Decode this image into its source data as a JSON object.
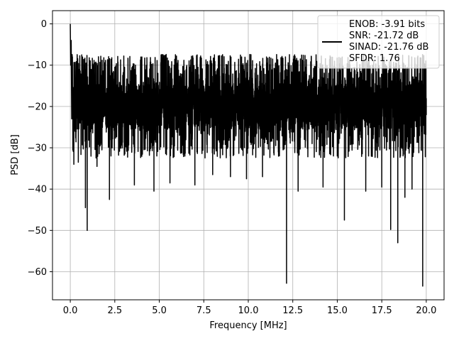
{
  "chart_data": {
    "type": "line",
    "title": "",
    "xlabel": "Frequency [MHz]",
    "ylabel": "PSD [dB]",
    "xlim": [
      -1.0,
      21.0
    ],
    "ylim": [
      -66.8,
      3.2
    ],
    "x_ticks": [
      0.0,
      2.5,
      5.0,
      7.5,
      10.0,
      12.5,
      15.0,
      17.5,
      20.0
    ],
    "x_tick_labels": [
      "0.0",
      "2.5",
      "5.0",
      "7.5",
      "10.0",
      "12.5",
      "15.0",
      "17.5",
      "20.0"
    ],
    "y_ticks": [
      0,
      -10,
      -20,
      -30,
      -40,
      -50,
      -60
    ],
    "y_tick_labels": [
      "0",
      "−10",
      "−20",
      "−30",
      "−40",
      "−50",
      "−60"
    ],
    "grid": true,
    "legend_position": "top-right",
    "legend_lines": [
      "ENOB: -3.91 bits",
      "SNR: -21.72 dB",
      "SINAD: -21.76 dB",
      "SFDR: 1.76"
    ],
    "series": [
      {
        "color": "#000000",
        "description_points": [
          [
            0.0,
            0.0
          ],
          [
            0.02,
            -10.0
          ],
          [
            0.05,
            -4.0
          ],
          [
            0.08,
            -23.0
          ],
          [
            0.12,
            -8.0
          ],
          [
            0.2,
            -34.0
          ],
          [
            0.45,
            -33.5
          ],
          [
            0.6,
            -21.0
          ],
          [
            0.85,
            -44.5
          ],
          [
            0.95,
            -50.0
          ],
          [
            1.5,
            -34.5
          ],
          [
            2.2,
            -42.5
          ],
          [
            3.6,
            -39.0
          ],
          [
            4.7,
            -40.5
          ],
          [
            5.6,
            -38.5
          ],
          [
            7.0,
            -39.0
          ],
          [
            8.0,
            -36.5
          ],
          [
            9.0,
            -37.0
          ],
          [
            9.9,
            -37.5
          ],
          [
            10.8,
            -37.0
          ],
          [
            12.15,
            -62.8
          ],
          [
            12.8,
            -40.5
          ],
          [
            14.2,
            -39.5
          ],
          [
            15.4,
            -47.5
          ],
          [
            16.6,
            -40.5
          ],
          [
            17.5,
            -39.5
          ],
          [
            18.0,
            -49.8
          ],
          [
            18.4,
            -53.0
          ],
          [
            18.8,
            -42.0
          ],
          [
            19.2,
            -40.0
          ],
          [
            19.8,
            -63.5
          ],
          [
            20.0,
            -22.0
          ]
        ],
        "noise_floor_mean": -20.0,
        "noise_upper": -8.0,
        "noise_lower": -30.0
      }
    ]
  }
}
